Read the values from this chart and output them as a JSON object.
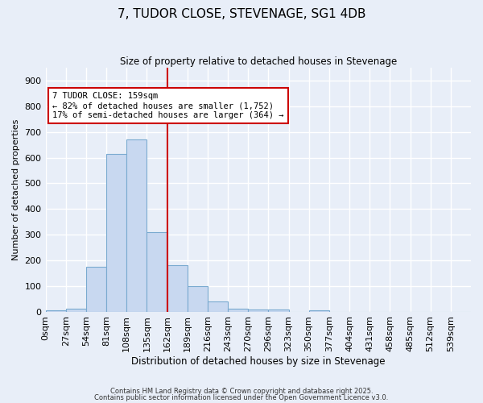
{
  "title": "7, TUDOR CLOSE, STEVENAGE, SG1 4DB",
  "subtitle": "Size of property relative to detached houses in Stevenage",
  "xlabel": "Distribution of detached houses by size in Stevenage",
  "ylabel": "Number of detached properties",
  "bar_color": "#c8d8f0",
  "bar_edge_color": "#7aaad0",
  "background_color": "#e8eef8",
  "grid_color": "#ffffff",
  "bin_labels": [
    "0sqm",
    "27sqm",
    "54sqm",
    "81sqm",
    "108sqm",
    "135sqm",
    "162sqm",
    "189sqm",
    "216sqm",
    "243sqm",
    "270sqm",
    "296sqm",
    "323sqm",
    "350sqm",
    "377sqm",
    "404sqm",
    "431sqm",
    "458sqm",
    "485sqm",
    "512sqm",
    "539sqm"
  ],
  "values": [
    5,
    10,
    175,
    615,
    670,
    310,
    180,
    100,
    38,
    12,
    8,
    8,
    0,
    5,
    0,
    0,
    0,
    0,
    0,
    0,
    0
  ],
  "vline_bin": 6,
  "annotation_title": "7 TUDOR CLOSE: 159sqm",
  "annotation_line1": "← 82% of detached houses are smaller (1,752)",
  "annotation_line2": "17% of semi-detached houses are larger (364) →",
  "annotation_box_color": "#ffffff",
  "annotation_box_edge": "#cc0000",
  "vline_color": "#cc0000",
  "ylim": [
    0,
    950
  ],
  "yticks": [
    0,
    100,
    200,
    300,
    400,
    500,
    600,
    700,
    800,
    900
  ],
  "footer1": "Contains HM Land Registry data © Crown copyright and database right 2025.",
  "footer2": "Contains public sector information licensed under the Open Government Licence v3.0."
}
